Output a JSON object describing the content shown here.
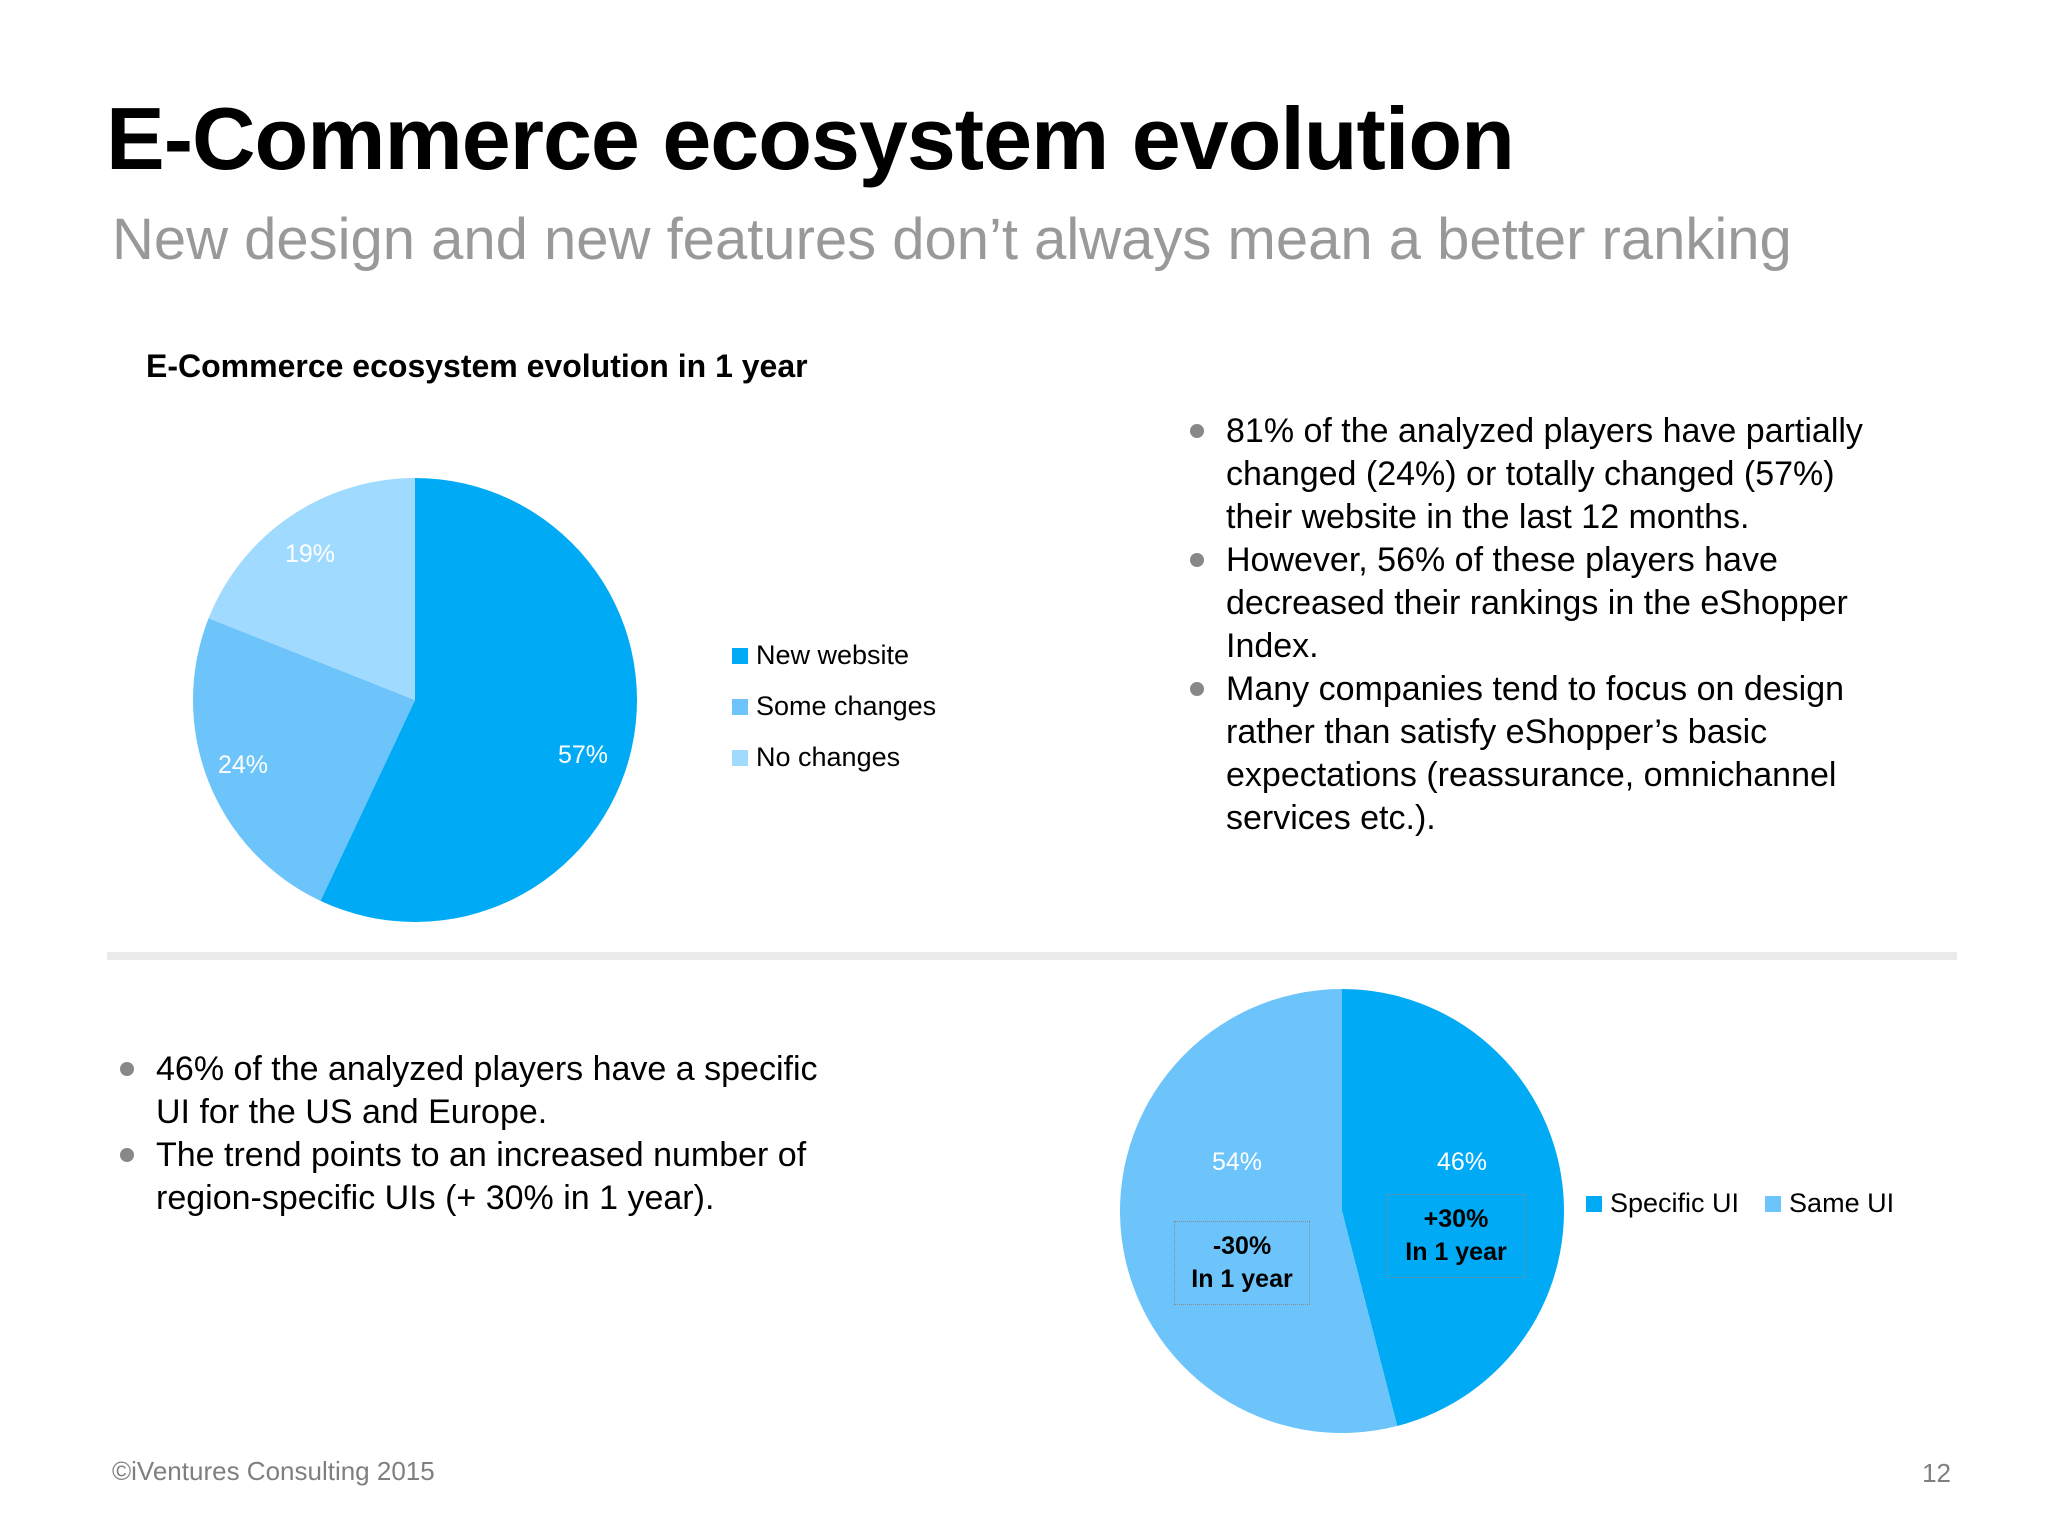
{
  "title": "E-Commerce ecosystem evolution",
  "subtitle": "New design and new features don’t always mean a better ranking",
  "top_bullets": [
    "81% of the analyzed players have partially changed (24%) or totally changed (57%) their website in the last 12 months.",
    "However, 56% of these players have decreased their rankings in the eShopper Index.",
    "Many companies tend to focus on design rather than satisfy eShopper’s basic expectations (reassurance, omnichannel services etc.)."
  ],
  "bottom_bullets": [
    "46% of the analyzed players have a specific UI for the US and Europe.",
    "The trend points to an increased number of region-specific UIs (+ 30% in 1 year)."
  ],
  "footer": "©iVentures Consulting 2015",
  "page_number": "12",
  "chart_data": [
    {
      "type": "pie",
      "title": "E-Commerce ecosystem evolution in 1 year",
      "slices": [
        {
          "label": "New website",
          "value": 57,
          "display": "57%",
          "color": "#00aaf5"
        },
        {
          "label": "Some changes",
          "value": 24,
          "display": "24%",
          "color": "#6cc4fb"
        },
        {
          "label": "No changes",
          "value": 19,
          "display": "19%",
          "color": "#a0daff"
        }
      ],
      "legend_position": "right"
    },
    {
      "type": "pie",
      "title": "",
      "slices": [
        {
          "label": "Specific UI",
          "value": 46,
          "display": "46%",
          "color": "#00aaf5"
        },
        {
          "label": "Same UI",
          "value": 54,
          "display": "54%",
          "color": "#6cc4fb"
        }
      ],
      "annotations": [
        {
          "slice": "Same UI",
          "change": "-30%",
          "period": "In 1 year"
        },
        {
          "slice": "Specific UI",
          "change": "+30%",
          "period": "In 1 year"
        }
      ],
      "legend_position": "right"
    }
  ]
}
